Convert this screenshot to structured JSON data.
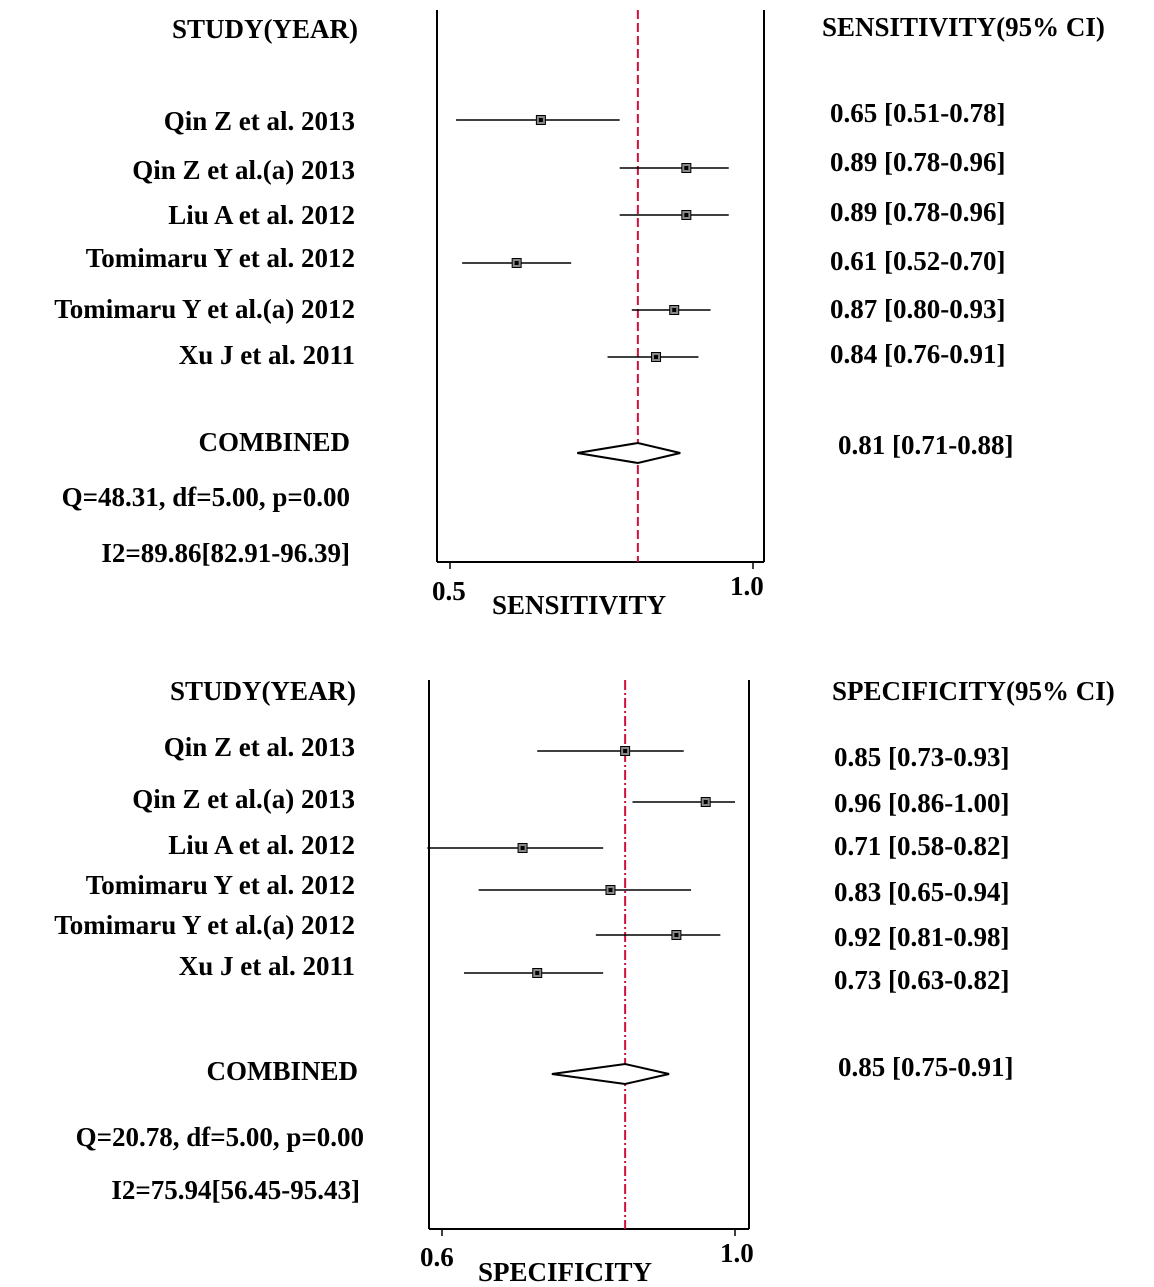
{
  "colors": {
    "reference_line": "#d0103a",
    "ink": "#000000",
    "marker_fill": "#888888"
  },
  "chart_data": [
    {
      "type": "forest",
      "study_header": "STUDY(YEAR)",
      "ci_header": "SENSITIVITY(95% CI)",
      "xlabel": "SENSITIVITY",
      "xlim": [
        0.5,
        1.0
      ],
      "xticks": [
        "0.5",
        "1.0"
      ],
      "reference_line": 0.81,
      "studies": [
        {
          "name": "Qin Z et al. 2013",
          "value": 0.65,
          "ci_low": 0.51,
          "ci_high": 0.78,
          "label": "0.65 [0.51-0.78]"
        },
        {
          "name": "Qin Z et al.(a) 2013",
          "value": 0.89,
          "ci_low": 0.78,
          "ci_high": 0.96,
          "label": "0.89 [0.78-0.96]"
        },
        {
          "name": "Liu A et al. 2012",
          "value": 0.89,
          "ci_low": 0.78,
          "ci_high": 0.96,
          "label": "0.89 [0.78-0.96]"
        },
        {
          "name": "Tomimaru Y et al. 2012",
          "value": 0.61,
          "ci_low": 0.52,
          "ci_high": 0.7,
          "label": "0.61 [0.52-0.70]"
        },
        {
          "name": "Tomimaru Y et al.(a) 2012",
          "value": 0.87,
          "ci_low": 0.8,
          "ci_high": 0.93,
          "label": "0.87 [0.80-0.93]"
        },
        {
          "name": "Xu J et al. 2011",
          "value": 0.84,
          "ci_low": 0.76,
          "ci_high": 0.91,
          "label": "0.84 [0.76-0.91]"
        }
      ],
      "combined": {
        "name": "COMBINED",
        "value": 0.81,
        "ci_low": 0.71,
        "ci_high": 0.88,
        "label": "0.81 [0.71-0.88]"
      },
      "heterogeneity": [
        "Q=48.31, df=5.00, p=0.00",
        "I2=89.86[82.91-96.39]"
      ]
    },
    {
      "type": "forest",
      "study_header": "STUDY(YEAR)",
      "ci_header": "SPECIFICITY(95% CI)",
      "xlabel": "SPECIFICITY",
      "xlim": [
        0.6,
        1.0
      ],
      "xticks": [
        "0.6",
        "1.0"
      ],
      "reference_line": 0.85,
      "studies": [
        {
          "name": "Qin Z et al. 2013",
          "value": 0.85,
          "ci_low": 0.73,
          "ci_high": 0.93,
          "label": "0.85 [0.73-0.93]"
        },
        {
          "name": "Qin Z et al.(a) 2013",
          "value": 0.96,
          "ci_low": 0.86,
          "ci_high": 1.0,
          "label": "0.96 [0.86-1.00]"
        },
        {
          "name": "Liu A et al. 2012",
          "value": 0.71,
          "ci_low": 0.58,
          "ci_high": 0.82,
          "label": "0.71 [0.58-0.82]"
        },
        {
          "name": "Tomimaru Y et al. 2012",
          "value": 0.83,
          "ci_low": 0.65,
          "ci_high": 0.94,
          "label": "0.83 [0.65-0.94]"
        },
        {
          "name": "Tomimaru Y et al.(a) 2012",
          "value": 0.92,
          "ci_low": 0.81,
          "ci_high": 0.98,
          "label": "0.92 [0.81-0.98]"
        },
        {
          "name": "Xu J et al. 2011",
          "value": 0.73,
          "ci_low": 0.63,
          "ci_high": 0.82,
          "label": "0.73 [0.63-0.82]"
        }
      ],
      "combined": {
        "name": "COMBINED",
        "value": 0.85,
        "ci_low": 0.75,
        "ci_high": 0.91,
        "label": "0.85 [0.75-0.91]"
      },
      "heterogeneity": [
        "Q=20.78, df=5.00, p=0.00",
        "I2=75.94[56.45-95.43]"
      ]
    }
  ]
}
